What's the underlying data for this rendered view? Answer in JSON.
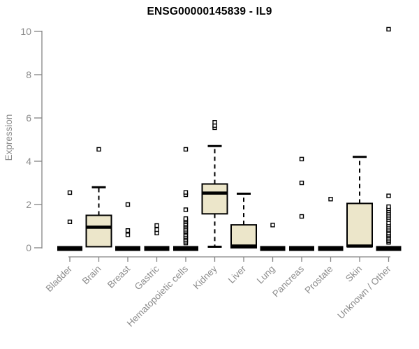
{
  "title": "ENSG00000145839 - IL9",
  "colors": {
    "background": "#ffffff",
    "box_fill": "#ece6ca",
    "box_stroke": "#000000",
    "outlier_fill": "#ffffff",
    "axis_line": "#848484",
    "axis_text": "#8c8c8c",
    "title_text": "#000000"
  },
  "chart_data": {
    "type": "boxplot",
    "title": "ENSG00000145839 - IL9",
    "xlabel": "",
    "ylabel": "Expression",
    "ylim": [
      0,
      10
    ],
    "yticks": [
      0,
      2,
      4,
      6,
      8,
      10
    ],
    "grid": false,
    "legend": false,
    "categories": [
      "Bladder",
      "Brain",
      "Breast",
      "Gastric",
      "Hematopoietic cells",
      "Kidney",
      "Liver",
      "Lung",
      "Pancreas",
      "Prostate",
      "Skin",
      "Unknown / Other"
    ],
    "series": [
      {
        "name": "Bladder",
        "q1": 0,
        "median": 0,
        "q3": 0,
        "whisker_low": 0,
        "whisker_high": 0,
        "outliers": [
          1.2,
          2.55
        ]
      },
      {
        "name": "Brain",
        "q1": 0.05,
        "median": 0.95,
        "q3": 1.5,
        "whisker_low": 0,
        "whisker_high": 2.8,
        "outliers": [
          4.55
        ]
      },
      {
        "name": "Breast",
        "q1": 0,
        "median": 0,
        "q3": 0,
        "whisker_low": 0,
        "whisker_high": 0,
        "outliers": [
          0.6,
          0.8,
          2.0
        ]
      },
      {
        "name": "Gastric",
        "q1": 0,
        "median": 0,
        "q3": 0,
        "whisker_low": 0,
        "whisker_high": 0,
        "outliers": [
          0.68,
          0.84,
          1.03
        ]
      },
      {
        "name": "Hematopoietic cells",
        "q1": 0,
        "median": 0,
        "q3": 0,
        "whisker_low": 0,
        "whisker_high": 0,
        "outliers": [
          0.22,
          0.3,
          0.38,
          0.45,
          0.52,
          0.6,
          0.68,
          0.75,
          0.82,
          0.9,
          0.98,
          1.05,
          1.12,
          1.2,
          1.28,
          1.35,
          1.76,
          2.45,
          2.56,
          4.55
        ]
      },
      {
        "name": "Kidney",
        "q1": 1.57,
        "median": 2.53,
        "q3": 2.95,
        "whisker_low": 0.05,
        "whisker_high": 4.7,
        "outliers": [
          5.55,
          5.65,
          5.8
        ]
      },
      {
        "name": "Liver",
        "q1": 0,
        "median": 0.08,
        "q3": 1.06,
        "whisker_low": 0,
        "whisker_high": 2.5,
        "outliers": []
      },
      {
        "name": "Lung",
        "q1": 0,
        "median": 0,
        "q3": 0,
        "whisker_low": 0,
        "whisker_high": 0,
        "outliers": [
          1.05
        ]
      },
      {
        "name": "Pancreas",
        "q1": 0,
        "median": 0,
        "q3": 0,
        "whisker_low": 0,
        "whisker_high": 0,
        "outliers": [
          1.45,
          3.0,
          4.1
        ]
      },
      {
        "name": "Prostate",
        "q1": 0,
        "median": 0,
        "q3": 0,
        "whisker_low": 0,
        "whisker_high": 0,
        "outliers": [
          2.25
        ]
      },
      {
        "name": "Skin",
        "q1": 0.05,
        "median": 0.08,
        "q3": 2.05,
        "whisker_low": 0,
        "whisker_high": 4.2,
        "outliers": []
      },
      {
        "name": "Unknown / Other",
        "q1": 0,
        "median": 0,
        "q3": 0,
        "whisker_low": 0,
        "whisker_high": 0,
        "outliers": [
          0.25,
          0.32,
          0.4,
          0.48,
          0.55,
          0.62,
          0.7,
          0.78,
          0.85,
          0.95,
          1.05,
          1.15,
          1.3,
          1.4,
          1.5,
          1.6,
          1.7,
          1.8,
          1.9,
          2.4,
          10.1
        ]
      }
    ]
  }
}
